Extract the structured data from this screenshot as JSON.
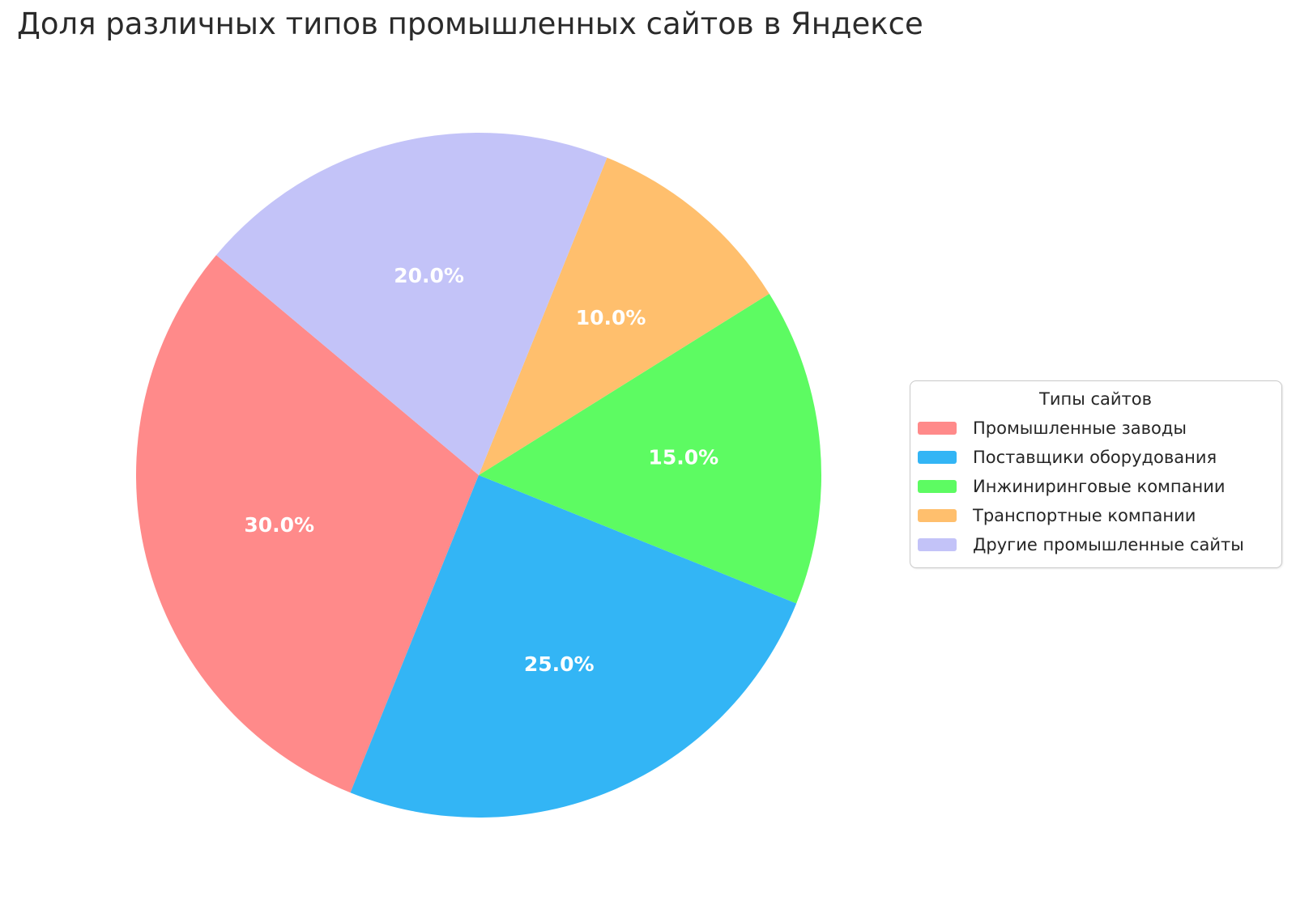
{
  "chart_data": {
    "type": "pie",
    "title": "Доля различных типов промышленных сайтов в Яндексе",
    "legend_title": "Типы сайтов",
    "legend_position": "center right",
    "start_angle_deg": 140,
    "direction": "counterclockwise",
    "pctdistance": 0.6,
    "pct_label_color": "#ffffff",
    "categories": [
      "Промышленные заводы",
      "Поставщики оборудования",
      "Инжиниринговые компании",
      "Транспортные компании",
      "Другие промышленные сайты"
    ],
    "values": [
      30,
      25,
      15,
      10,
      20
    ],
    "slices": [
      {
        "label": "Промышленные заводы",
        "value": 30,
        "pct_label": "30.0%",
        "color": "#ff8a8a"
      },
      {
        "label": "Поставщики оборудования",
        "value": 25,
        "pct_label": "25.0%",
        "color": "#33b5f5"
      },
      {
        "label": "Инжиниринговые компании",
        "value": 15,
        "pct_label": "15.0%",
        "color": "#5dfb62"
      },
      {
        "label": "Транспортные компании",
        "value": 10,
        "pct_label": "10.0%",
        "color": "#ffbf6d"
      },
      {
        "label": "Другие промышленные сайты",
        "value": 20,
        "pct_label": "20.0%",
        "color": "#c3c3f8"
      }
    ]
  }
}
